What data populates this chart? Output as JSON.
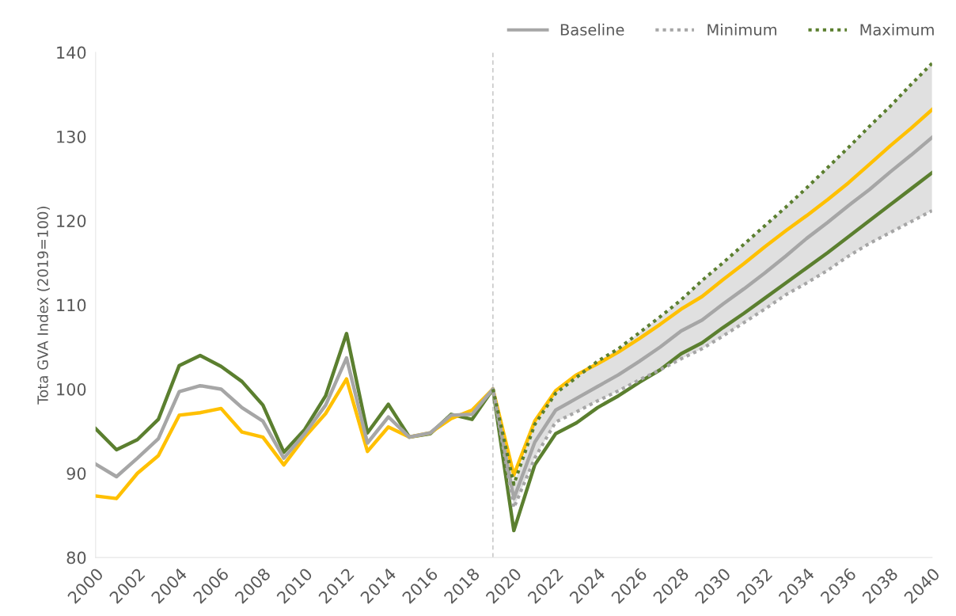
{
  "chart_data": {
    "type": "line",
    "ylabel": "Tota GVA Index (2019=100)",
    "x": [
      2000,
      2001,
      2002,
      2003,
      2004,
      2005,
      2006,
      2007,
      2008,
      2009,
      2010,
      2011,
      2012,
      2013,
      2014,
      2015,
      2016,
      2017,
      2018,
      2019,
      2020,
      2021,
      2022,
      2023,
      2024,
      2025,
      2026,
      2027,
      2028,
      2029,
      2030,
      2031,
      2032,
      2033,
      2034,
      2035,
      2036,
      2037,
      2038,
      2039,
      2040
    ],
    "series": [
      {
        "color": "#5b7f2f",
        "values": [
          95.3,
          92.8,
          94.0,
          96.4,
          102.8,
          104.0,
          102.7,
          100.9,
          98.1,
          92.5,
          95.2,
          99.2,
          106.6,
          94.8,
          98.2,
          94.3,
          94.7,
          97.0,
          96.4,
          100,
          83.2,
          91.0,
          94.7,
          96.0,
          97.8,
          99.2,
          100.8,
          102.3,
          104.2,
          105.5,
          107.3,
          109.0,
          110.8,
          112.6,
          114.4,
          116.2,
          118.1,
          120.0,
          121.9,
          123.8,
          125.7
        ]
      },
      {
        "color": "#ffc000",
        "values": [
          87.3,
          87.0,
          90.0,
          92.1,
          96.9,
          97.2,
          97.7,
          94.9,
          94.3,
          91.0,
          94.3,
          97.1,
          101.2,
          92.6,
          95.5,
          94.3,
          94.8,
          96.5,
          97.5,
          100,
          89.8,
          96.2,
          99.8,
          101.7,
          103.0,
          104.4,
          106.0,
          107.7,
          109.5,
          111.0,
          113.0,
          114.9,
          116.9,
          118.8,
          120.6,
          122.5,
          124.5,
          126.7,
          128.9,
          131.0,
          133.2
        ]
      },
      {
        "name": "Baseline",
        "color": "#a6a6a6",
        "values": [
          91.1,
          89.6,
          91.8,
          94.1,
          99.7,
          100.4,
          100.0,
          97.8,
          96.2,
          91.8,
          94.7,
          98.1,
          103.7,
          93.6,
          96.7,
          94.3,
          94.8,
          96.9,
          97.0,
          100,
          87.0,
          93.7,
          97.5,
          98.9,
          100.3,
          101.7,
          103.3,
          105.0,
          106.9,
          108.2,
          110.1,
          111.9,
          113.8,
          115.8,
          117.9,
          119.8,
          121.8,
          123.7,
          125.8,
          127.8,
          129.9
        ],
        "lower": [
          null,
          null,
          null,
          null,
          null,
          null,
          null,
          null,
          null,
          null,
          null,
          null,
          null,
          null,
          null,
          null,
          null,
          null,
          null,
          100,
          85.9,
          91.8,
          96.1,
          97.3,
          98.6,
          99.8,
          101.1,
          102.3,
          103.6,
          104.8,
          106.3,
          107.9,
          109.5,
          111.2,
          112.6,
          114.1,
          115.8,
          117.3,
          118.6,
          119.9,
          121.2
        ],
        "upper": [
          null,
          null,
          null,
          null,
          null,
          null,
          null,
          null,
          null,
          null,
          null,
          null,
          null,
          null,
          null,
          null,
          null,
          null,
          null,
          100,
          88.7,
          95.8,
          99.5,
          101.4,
          103.3,
          104.8,
          106.7,
          108.6,
          110.6,
          112.9,
          115.0,
          117.2,
          119.4,
          121.6,
          123.9,
          126.3,
          128.7,
          131.2,
          133.6,
          136.2,
          138.7
        ]
      },
      {
        "name": "Minimum",
        "color": "#a6a6a6",
        "line_style": "dotted",
        "x": [
          2019,
          2020,
          2021,
          2022,
          2023,
          2024,
          2025,
          2026,
          2027,
          2028,
          2029,
          2030,
          2031,
          2032,
          2033,
          2034,
          2035,
          2036,
          2037,
          2038,
          2039,
          2040
        ],
        "values": [
          100,
          85.9,
          91.8,
          96.1,
          97.3,
          98.6,
          99.8,
          101.1,
          102.3,
          103.6,
          104.8,
          106.3,
          107.9,
          109.5,
          111.2,
          112.6,
          114.1,
          115.8,
          117.3,
          118.6,
          119.9,
          121.2
        ]
      },
      {
        "name": "Maximum",
        "color": "#5b7f2f",
        "line_style": "dotted",
        "x": [
          2019,
          2020,
          2021,
          2022,
          2023,
          2024,
          2025,
          2026,
          2027,
          2028,
          2029,
          2030,
          2031,
          2032,
          2033,
          2034,
          2035,
          2036,
          2037,
          2038,
          2039,
          2040
        ],
        "values": [
          100,
          88.7,
          95.8,
          99.5,
          101.4,
          103.3,
          104.8,
          106.7,
          108.6,
          110.6,
          112.9,
          115.0,
          117.2,
          119.4,
          121.6,
          123.9,
          126.3,
          128.7,
          131.2,
          133.6,
          136.2,
          138.7
        ]
      }
    ],
    "xlim": [
      2000,
      2040
    ],
    "xticks": [
      2000,
      2002,
      2004,
      2006,
      2008,
      2010,
      2012,
      2014,
      2016,
      2018,
      2020,
      2022,
      2024,
      2026,
      2028,
      2030,
      2032,
      2034,
      2036,
      2038,
      2040
    ],
    "ylim": [
      80,
      140
    ],
    "yticks": [
      80,
      90,
      100,
      110,
      120,
      130,
      140
    ],
    "ref_lines": [
      {
        "axis": "x",
        "value": 2019,
        "color": "#bfbfbf",
        "line_style": "dashed"
      }
    ],
    "legend": "top right",
    "grid": false,
    "line_style": "solid",
    "marker": "none"
  }
}
